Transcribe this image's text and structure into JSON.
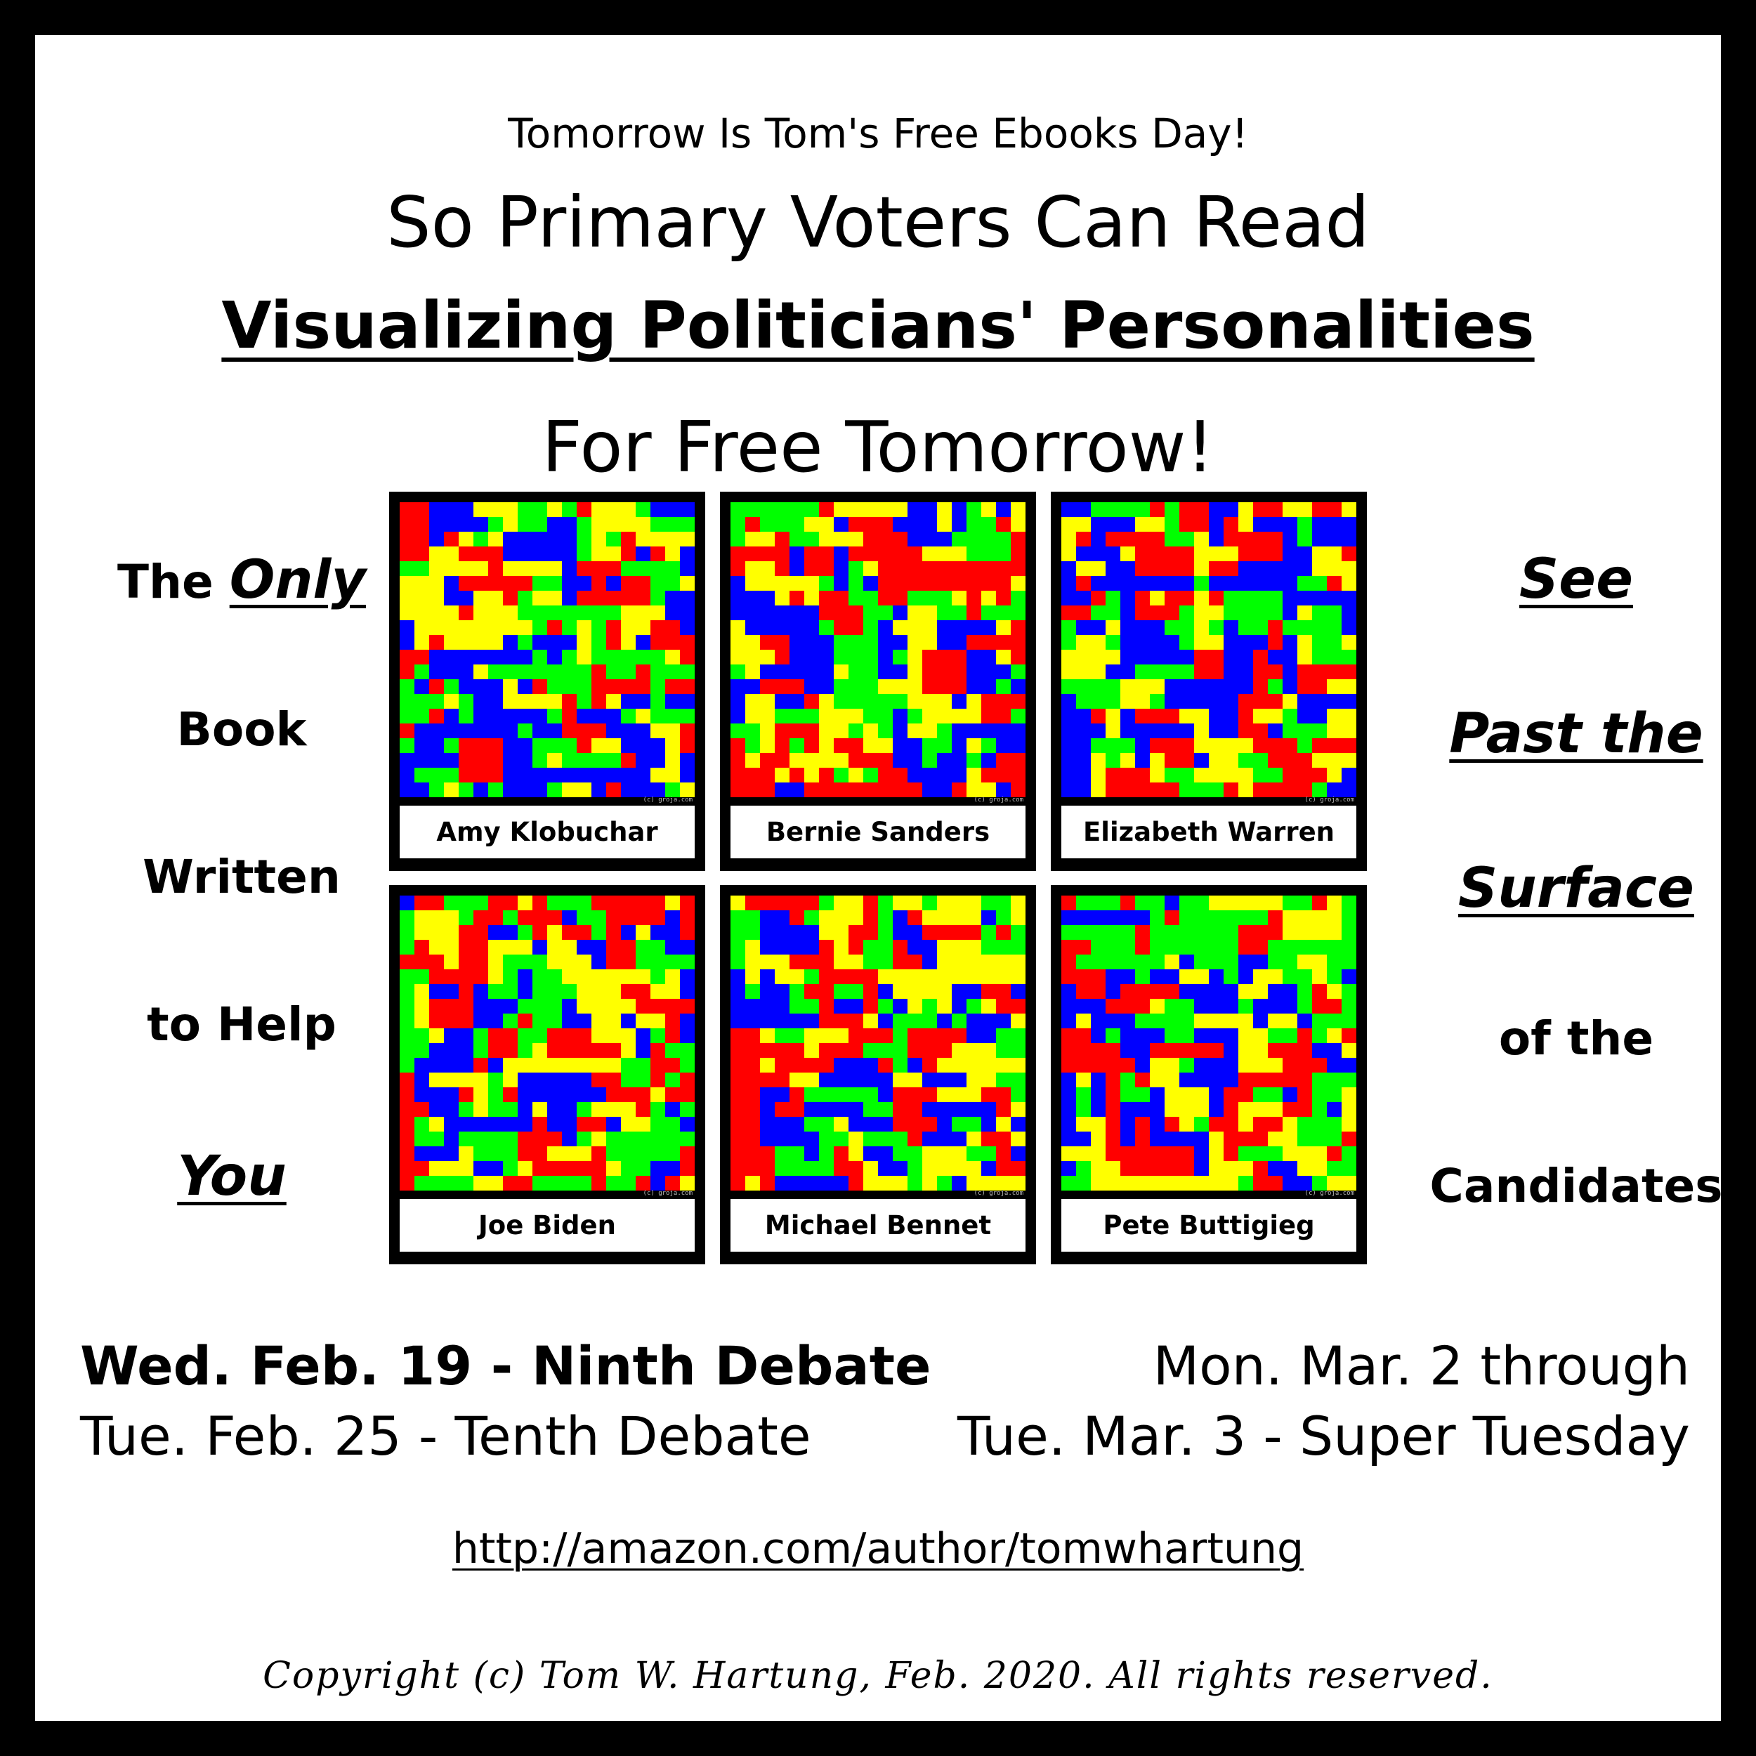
{
  "header": {
    "top_line": "Tomorrow Is Tom's Free Ebooks Day!",
    "line1": "So Primary Voters Can Read",
    "book_title": "Visualizing Politicians' Personalities",
    "line3": "For Free Tomorrow!"
  },
  "left_column": {
    "the": "The ",
    "only": "Only",
    "book": "Book",
    "written": "Written",
    "to_help": "to Help",
    "you": "You"
  },
  "right_column": {
    "see": "See",
    "past_the": "Past the",
    "surface": "Surface",
    "of_the": "of the",
    "candidates": "Candidates"
  },
  "panels": [
    {
      "name": "Amy Klobuchar",
      "credit": "(c) groja.com"
    },
    {
      "name": "Bernie Sanders",
      "credit": "(c) groja.com"
    },
    {
      "name": "Elizabeth Warren",
      "credit": "(c) groja.com"
    },
    {
      "name": "Joe Biden",
      "credit": "(c) groja.com"
    },
    {
      "name": "Michael Bennet",
      "credit": "(c) groja.com"
    },
    {
      "name": "Pete Buttigieg",
      "credit": "(c) groja.com"
    }
  ],
  "grid_colors": [
    "#ff0000",
    "#00ff00",
    "#0000ff",
    "#ffff00"
  ],
  "dates": {
    "debate9": "Wed. Feb. 19 - Ninth Debate",
    "debate10": "Tue. Feb. 25 - Tenth Debate",
    "mar2": "Mon. Mar. 2 through",
    "super_tuesday": "Tue. Mar. 3 - Super Tuesday"
  },
  "url": "http://amazon.com/author/tomwhartung",
  "copyright": "Copyright (c) Tom W. Hartung, Feb. 2020.  All rights reserved."
}
